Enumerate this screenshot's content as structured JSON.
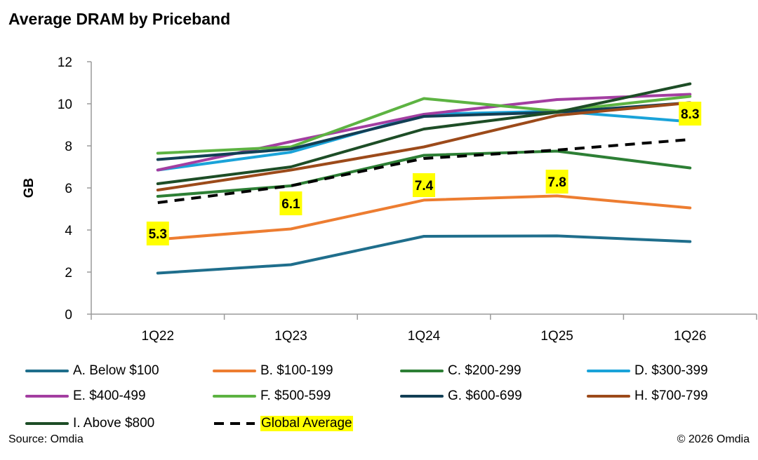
{
  "chart_data": {
    "type": "line",
    "title": "Average DRAM by Priceband",
    "xlabel": "",
    "ylabel": "GB",
    "ylim": [
      0,
      12
    ],
    "yticks": [
      "0",
      "2",
      "4",
      "6",
      "8",
      "10",
      "12"
    ],
    "categories": [
      "1Q22",
      "1Q23",
      "1Q24",
      "1Q25",
      "1Q26"
    ],
    "grid": false,
    "legend_position": "bottom",
    "series": [
      {
        "name": "A. Below $100",
        "color": "#1f6e8c",
        "dash": false,
        "values": [
          1.95,
          2.35,
          3.7,
          3.72,
          3.45
        ]
      },
      {
        "name": "B. $100-199",
        "color": "#ed7d31",
        "dash": false,
        "values": [
          3.55,
          4.05,
          5.42,
          5.62,
          5.05
        ]
      },
      {
        "name": "C. $200-299",
        "color": "#2d7f35",
        "dash": false,
        "values": [
          5.6,
          6.1,
          7.55,
          7.75,
          6.95
        ]
      },
      {
        "name": "D. $300-399",
        "color": "#1aa3d9",
        "dash": false,
        "values": [
          6.85,
          7.7,
          9.5,
          9.65,
          9.15
        ]
      },
      {
        "name": "E. $400-499",
        "color": "#a33ea1",
        "dash": false,
        "values": [
          6.85,
          8.2,
          9.5,
          10.2,
          10.45
        ]
      },
      {
        "name": "F. $500-599",
        "color": "#5db342",
        "dash": false,
        "values": [
          7.65,
          7.95,
          10.25,
          9.65,
          10.35
        ]
      },
      {
        "name": "G. $600-699",
        "color": "#123f55",
        "dash": false,
        "values": [
          7.35,
          7.85,
          9.4,
          9.6,
          10.05
        ]
      },
      {
        "name": "H. $700-799",
        "color": "#9c4a1a",
        "dash": false,
        "values": [
          5.9,
          6.85,
          7.95,
          9.45,
          10.05
        ]
      },
      {
        "name": "I. Above $800",
        "color": "#1d4d26",
        "dash": false,
        "values": [
          6.2,
          7.0,
          8.8,
          9.6,
          10.95
        ]
      },
      {
        "name": "Global Average",
        "color": "#000000",
        "dash": true,
        "values": [
          5.3,
          6.1,
          7.4,
          7.8,
          8.3
        ]
      }
    ],
    "annotations": [
      {
        "label": "5.3",
        "category": "1Q22"
      },
      {
        "label": "6.1",
        "category": "1Q23"
      },
      {
        "label": "7.4",
        "category": "1Q24"
      },
      {
        "label": "7.8",
        "category": "1Q25"
      },
      {
        "label": "8.3",
        "category": "1Q26"
      }
    ]
  },
  "footer": {
    "source": "Source: Omdia",
    "copyright": "© 2026 Omdia"
  }
}
